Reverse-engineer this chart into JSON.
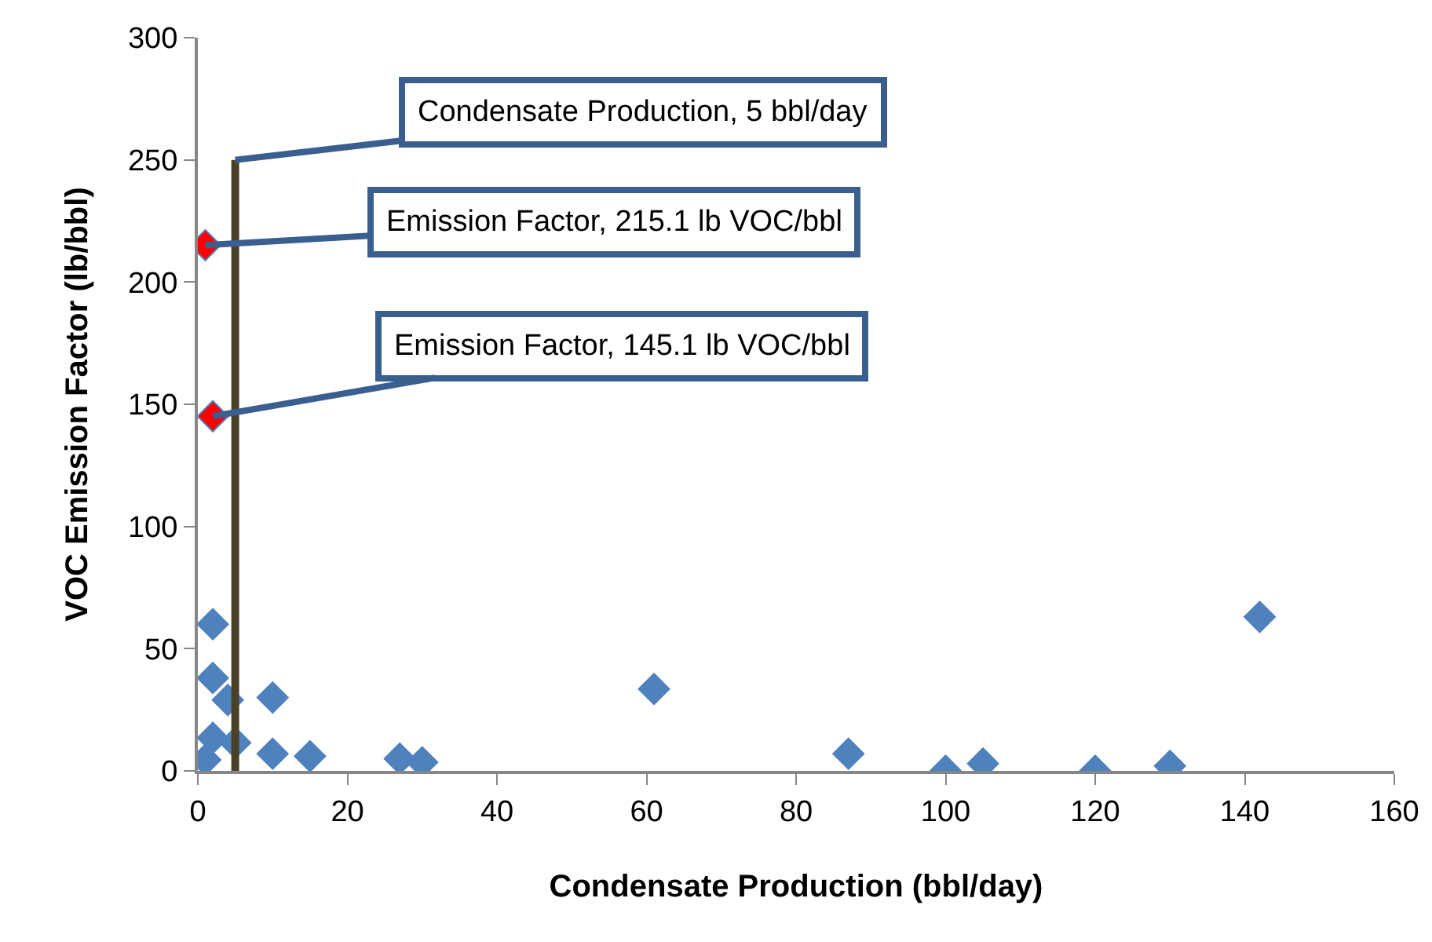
{
  "chart_data": {
    "type": "scatter",
    "xlabel": "Condensate Production (bbl/day)",
    "ylabel": "VOC Emission Factor (lb/bbl)",
    "series": [
      {
        "color": "#4f81bd",
        "x": [
          1,
          2,
          2,
          2,
          4,
          5,
          10,
          10,
          15,
          27,
          30,
          61,
          87,
          100,
          105,
          120,
          130,
          142
        ],
        "values": [
          4.5,
          13.5,
          38,
          60,
          29,
          11.5,
          30,
          7,
          6,
          5,
          3.5,
          33.5,
          7,
          0,
          3,
          0,
          2,
          63
        ]
      },
      {
        "color": "#ff0000",
        "x": [
          1,
          2
        ],
        "values": [
          215.1,
          145.1
        ]
      },
      {
        "type": "line",
        "marker": "none",
        "color": "#4a4228",
        "x": [
          5,
          5
        ],
        "values": [
          0,
          250
        ]
      }
    ],
    "annotations": [
      {
        "text": "Condensate Production, 5 bbl/day",
        "x": 5,
        "y": 250
      },
      {
        "text": "Emission Factor, 215.1 lb VOC/bbl",
        "x": 1,
        "y": 215.1
      },
      {
        "text": "Emission Factor, 145.1 lb VOC/bbl",
        "x": 2,
        "y": 145.1
      }
    ],
    "xlim": [
      0,
      160
    ],
    "xticks": [
      0,
      20,
      40,
      60,
      80,
      100,
      120,
      140,
      160
    ],
    "ylim": [
      0,
      300
    ],
    "yticks": [
      0,
      50,
      100,
      150,
      200,
      250,
      300
    ],
    "grid": false,
    "marker": "diamond"
  }
}
